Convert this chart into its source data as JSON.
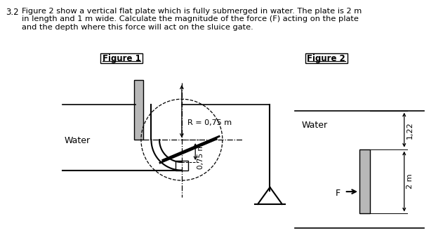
{
  "fig1_label": "Figure 1",
  "fig2_label": "Figure 2",
  "water_label_fig1": "Water",
  "water_label_fig2": "Water",
  "R_label": "R = 0,75 m",
  "dim_075": "0,75 m",
  "dim_122": "1,22",
  "dim_2m": "2 m",
  "F_label": "F",
  "bg_color": "#ffffff",
  "gray_fill": "#b8b8b8",
  "line_color": "#000000",
  "title_line1": "3.2   Figure 2 show a vertical flat plate which is fully submerged in water. The plate is 2 m",
  "title_line2": "       in length and 1 m wide. Calculate the magnitude of the force (F) acting on the plate",
  "title_line3": "       and the depth where this force will act on the sluice gate."
}
